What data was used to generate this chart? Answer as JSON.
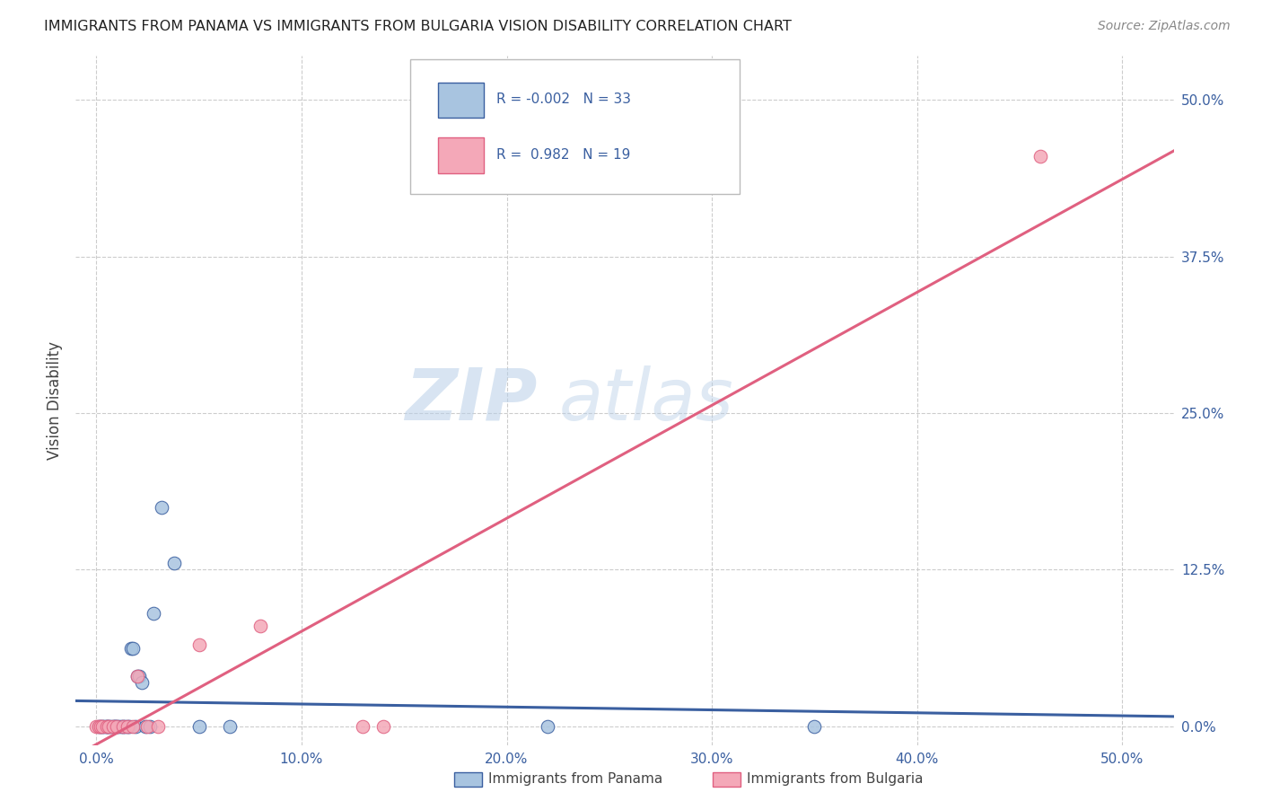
{
  "title": "IMMIGRANTS FROM PANAMA VS IMMIGRANTS FROM BULGARIA VISION DISABILITY CORRELATION CHART",
  "source": "Source: ZipAtlas.com",
  "ylabel_label": "Vision Disability",
  "x_ticks": [
    0.0,
    0.1,
    0.2,
    0.3,
    0.4,
    0.5
  ],
  "x_tick_labels": [
    "0.0%",
    "10.0%",
    "20.0%",
    "30.0%",
    "40.0%",
    "50.0%"
  ],
  "y_ticks": [
    0.0,
    0.125,
    0.25,
    0.375,
    0.5
  ],
  "y_tick_labels": [
    "0.0%",
    "12.5%",
    "25.0%",
    "37.5%",
    "50.0%"
  ],
  "xlim": [
    -0.01,
    0.525
  ],
  "ylim": [
    -0.015,
    0.535
  ],
  "panama_color": "#a8c4e0",
  "bulgaria_color": "#f4a8b8",
  "trend_panama_color": "#3a5fa0",
  "trend_bulgaria_color": "#e06080",
  "watermark_text": "ZIP",
  "watermark_text2": "atlas",
  "r_panama": "-0.002",
  "n_panama": "33",
  "r_bulgaria": "0.982",
  "n_bulgaria": "19",
  "panama_scatter_x": [
    0.001,
    0.002,
    0.003,
    0.004,
    0.005,
    0.005,
    0.006,
    0.007,
    0.008,
    0.009,
    0.009,
    0.01,
    0.011,
    0.012,
    0.013,
    0.014,
    0.015,
    0.016,
    0.017,
    0.018,
    0.019,
    0.02,
    0.021,
    0.022,
    0.024,
    0.026,
    0.028,
    0.032,
    0.038,
    0.05,
    0.065,
    0.22,
    0.35
  ],
  "panama_scatter_y": [
    0.0,
    0.0,
    0.0,
    0.0,
    0.0,
    0.0,
    0.0,
    0.0,
    0.0,
    0.0,
    0.0,
    0.0,
    0.0,
    0.0,
    0.0,
    0.0,
    0.0,
    0.0,
    0.062,
    0.062,
    0.0,
    0.04,
    0.04,
    0.035,
    0.0,
    0.0,
    0.09,
    0.175,
    0.13,
    0.0,
    0.0,
    0.0,
    0.0
  ],
  "bulgaria_scatter_x": [
    0.0,
    0.001,
    0.002,
    0.003,
    0.005,
    0.006,
    0.008,
    0.01,
    0.013,
    0.015,
    0.018,
    0.02,
    0.025,
    0.03,
    0.05,
    0.08,
    0.13,
    0.14,
    0.46
  ],
  "bulgaria_scatter_y": [
    0.0,
    0.0,
    0.0,
    0.0,
    0.0,
    0.0,
    0.0,
    0.0,
    0.0,
    0.0,
    0.0,
    0.04,
    0.0,
    0.0,
    0.065,
    0.08,
    0.0,
    0.0,
    0.455
  ],
  "legend_label_panama": "Immigrants from Panama",
  "legend_label_bulgaria": "Immigrants from Bulgaria",
  "background_color": "#ffffff",
  "grid_color": "#cccccc"
}
